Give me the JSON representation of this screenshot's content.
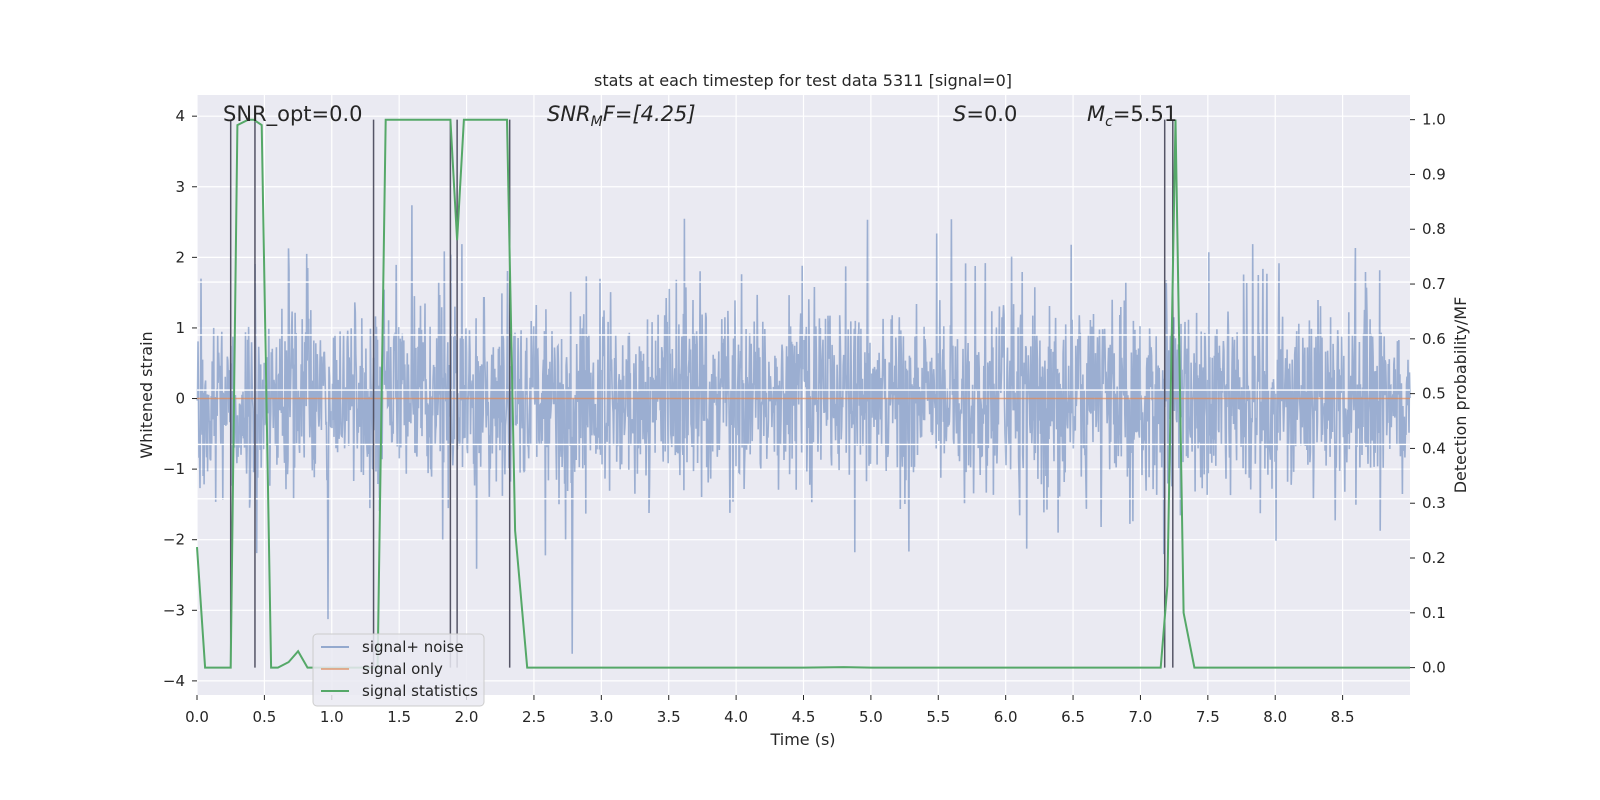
{
  "chart_data": {
    "type": "line",
    "title": "stats at each timestep for test data 5311 [signal=0]",
    "xlabel": "Time (s)",
    "ylabel": "Whitened strain",
    "ylabel_right": "Detection probability/MF",
    "xlim": [
      0.0,
      9.0
    ],
    "ylim": [
      -4.2,
      4.3
    ],
    "ylim_right": [
      -0.05,
      1.045
    ],
    "x_ticks": [
      0.0,
      0.5,
      1.0,
      1.5,
      2.0,
      2.5,
      3.0,
      3.5,
      4.0,
      4.5,
      5.0,
      5.5,
      6.0,
      6.5,
      7.0,
      7.5,
      8.0,
      8.5
    ],
    "x_tick_labels": [
      "0.0",
      "0.5",
      "1.0",
      "1.5",
      "2.0",
      "2.5",
      "3.0",
      "3.5",
      "4.0",
      "4.5",
      "5.0",
      "5.5",
      "6.0",
      "6.5",
      "7.0",
      "7.5",
      "8.0",
      "8.5"
    ],
    "y_ticks": [
      -4,
      -3,
      -2,
      -1,
      0,
      1,
      2,
      3,
      4
    ],
    "y_tick_labels": [
      "−4",
      "−3",
      "−2",
      "−1",
      "0",
      "1",
      "2",
      "3",
      "4"
    ],
    "y_right_ticks": [
      0.0,
      0.1,
      0.2,
      0.3,
      0.4,
      0.5,
      0.6,
      0.7,
      0.8,
      0.9,
      1.0
    ],
    "y_right_tick_labels": [
      "0.0",
      "0.1",
      "0.2",
      "0.3",
      "0.4",
      "0.5",
      "0.6",
      "0.7",
      "0.8",
      "0.9",
      "1.0"
    ],
    "annotations": {
      "snr_opt": "SNR_opt=0.0",
      "snr_mf_base": "SNR",
      "snr_mf_sub": "M",
      "snr_mf_rest": "F=[4.25]",
      "s_var": "S",
      "s_rest": "=0.0",
      "mc_base": "M",
      "mc_sub": "c",
      "mc_rest": "=5.51"
    },
    "legend": {
      "location": "lower-left",
      "entries": [
        "signal+ noise",
        "signal only",
        "signal statistics"
      ]
    },
    "series": [
      {
        "name": "signal+ noise",
        "color": "#4c72b0",
        "kind": "noise",
        "duration": 9.0,
        "envelope_max": 4.0,
        "envelope_min": -3.8,
        "typical_low": -1.5,
        "typical_high": 1.8
      },
      {
        "name": "signal only",
        "color": "#dd8452",
        "kind": "flat",
        "value": 0.0
      },
      {
        "name": "signal statistics",
        "color": "#55a868",
        "x": [
          0.0,
          0.06,
          0.1,
          0.25,
          0.3,
          0.38,
          0.42,
          0.48,
          0.55,
          0.6,
          0.68,
          0.75,
          0.82,
          0.9,
          0.98,
          1.05,
          1.12,
          1.2,
          1.28,
          1.34,
          1.4,
          1.5,
          1.6,
          1.7,
          1.8,
          1.88,
          1.93,
          1.98,
          2.05,
          2.15,
          2.3,
          2.36,
          2.45,
          2.55,
          2.7,
          3.0,
          3.5,
          4.0,
          4.5,
          4.8,
          5.0,
          5.5,
          6.0,
          6.5,
          7.0,
          7.15,
          7.2,
          7.26,
          7.32,
          7.4,
          7.5,
          8.0,
          8.5,
          9.0
        ],
        "y": [
          0.22,
          0.0,
          0.0,
          0.0,
          0.99,
          1.0,
          1.0,
          0.99,
          0.0,
          0.0,
          0.01,
          0.03,
          0.0,
          0.0,
          0.0,
          0.0,
          0.0,
          0.0,
          0.0,
          0.0,
          1.0,
          1.0,
          1.0,
          1.0,
          1.0,
          1.0,
          0.78,
          1.0,
          1.0,
          1.0,
          1.0,
          0.25,
          0.0,
          0.0,
          0.0,
          0.0,
          0.0,
          0.0,
          0.0,
          0.001,
          0.0,
          0.0,
          0.0,
          0.0,
          0.0,
          0.0,
          0.15,
          1.0,
          0.1,
          0.0,
          0.0,
          0.0,
          0.0,
          0.0
        ]
      }
    ],
    "vertical_markers": [
      0.25,
      0.43,
      1.31,
      1.88,
      1.93,
      2.32,
      7.18,
      7.24
    ],
    "marker_range": [
      0.0,
      1.0
    ],
    "horizontal_lines_left": [
      1.65,
      0.9,
      0.12,
      -0.65,
      -1.42
    ]
  }
}
